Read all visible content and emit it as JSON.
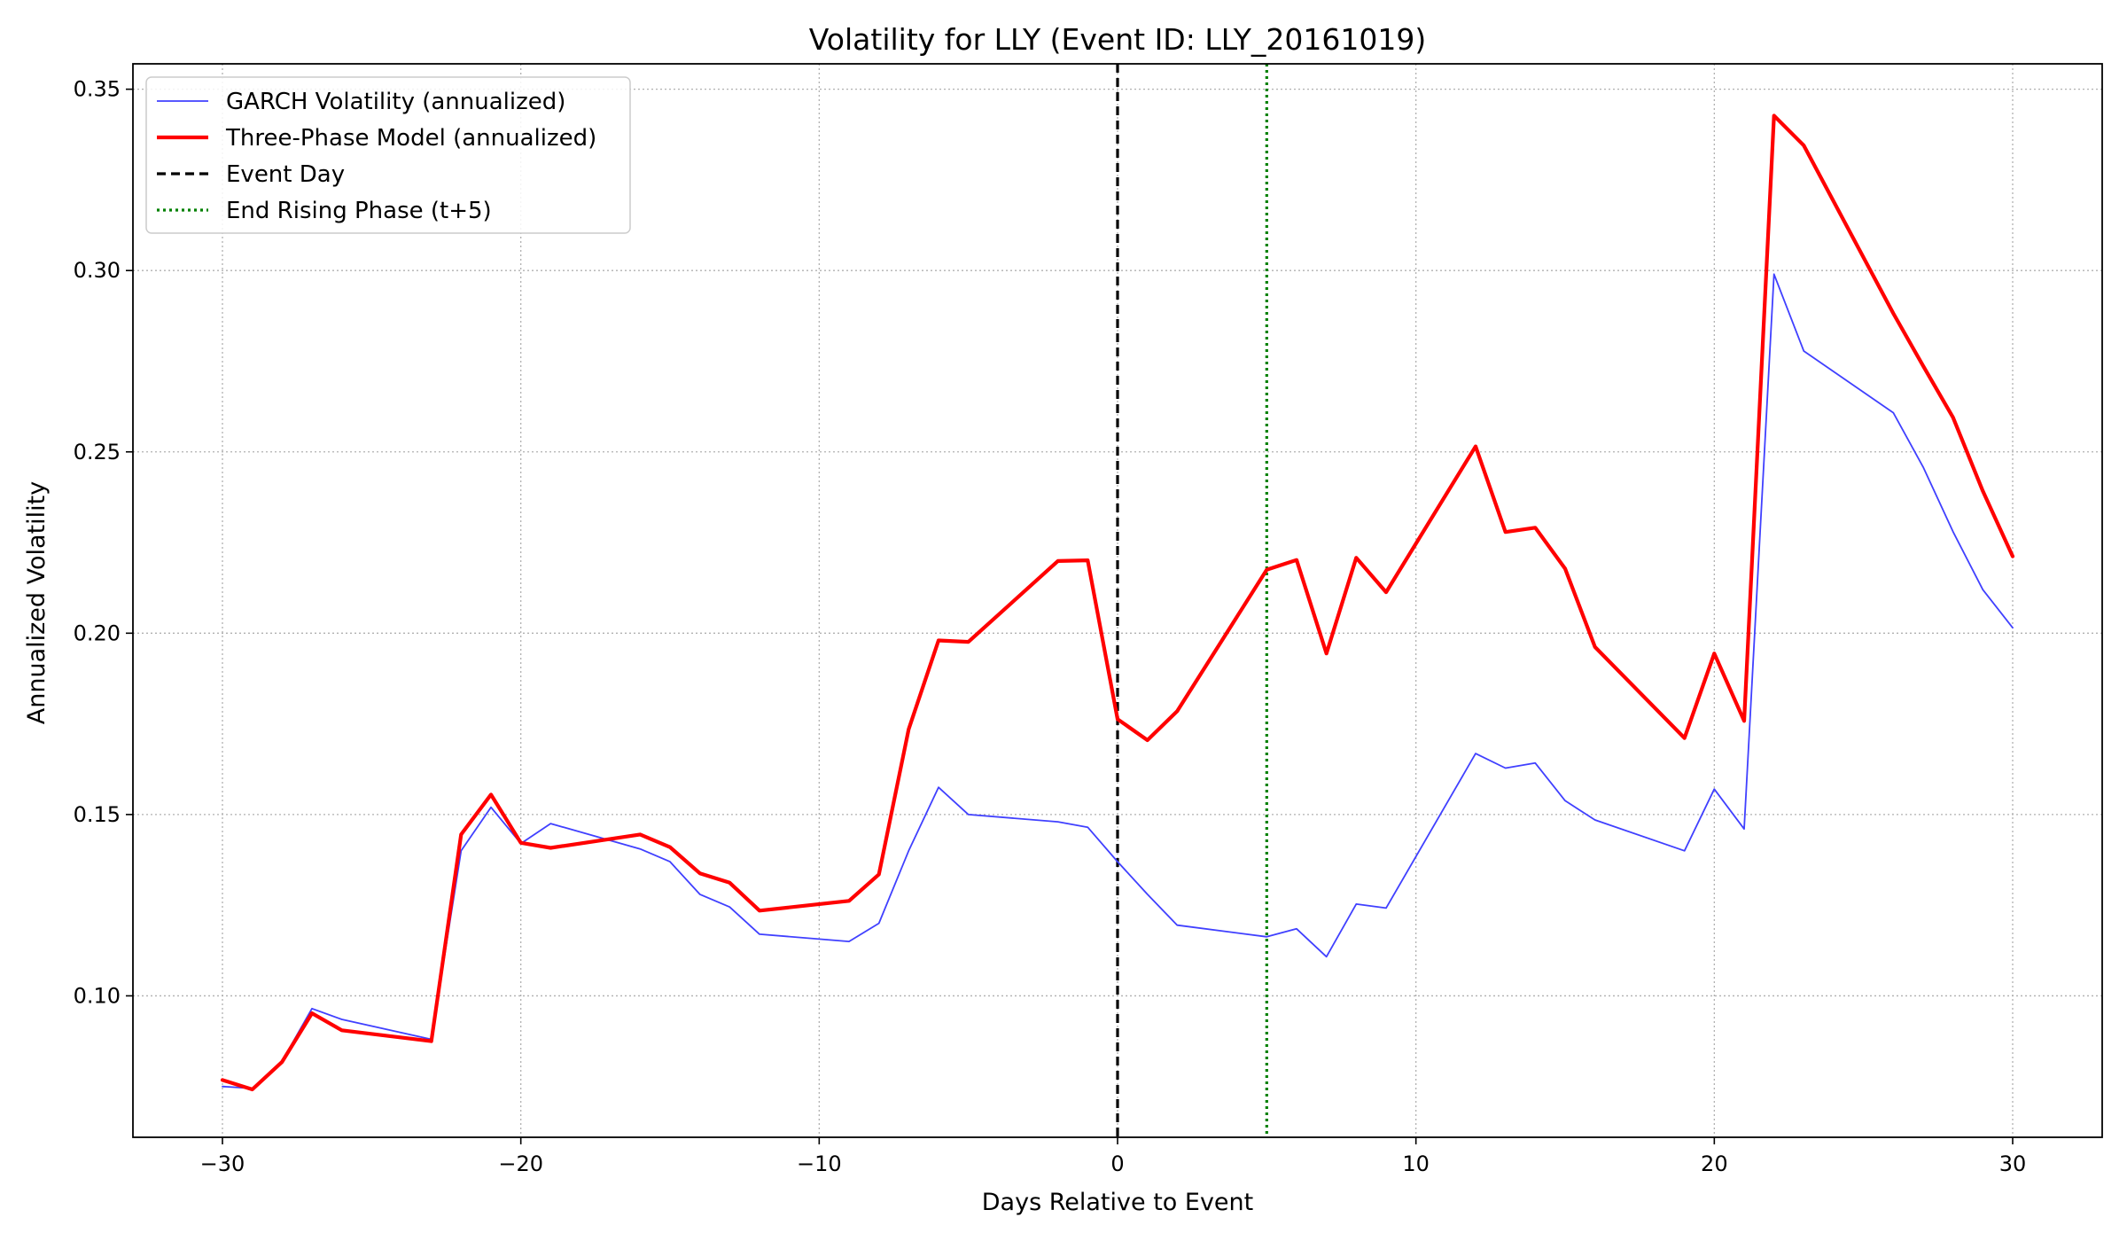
{
  "chart_data": {
    "type": "line",
    "title": "Volatility for LLY (Event ID: LLY_20161019)",
    "xlabel": "Days Relative to Event",
    "ylabel": "Annualized Volatility",
    "xlim": [
      -33,
      33
    ],
    "ylim": [
      0.061,
      0.357
    ],
    "xticks": [
      -30,
      -20,
      -10,
      0,
      10,
      20,
      30
    ],
    "xtick_labels": [
      "−30",
      "−20",
      "−10",
      "0",
      "10",
      "20",
      "30"
    ],
    "yticks": [
      0.1,
      0.15,
      0.2,
      0.25,
      0.3,
      0.35
    ],
    "ytick_labels": [
      "0.10",
      "0.15",
      "0.20",
      "0.25",
      "0.30",
      "0.35"
    ],
    "grid": true,
    "legend_position": "top-left",
    "series": [
      {
        "name": "GARCH Volatility (annualized)",
        "color": "#4040ff",
        "x": [
          -30,
          -29,
          -28,
          -27,
          -26,
          -23,
          -22,
          -21,
          -20,
          -19,
          -16,
          -15,
          -14,
          -13,
          -12,
          -9,
          -8,
          -7,
          -6,
          -5,
          -2,
          -1,
          0,
          1,
          2,
          5,
          6,
          7,
          8,
          9,
          12,
          13,
          14,
          15,
          16,
          19,
          20,
          21,
          22,
          23,
          26,
          27,
          28,
          29,
          30
        ],
        "y": [
          0.075,
          0.0745,
          0.082,
          0.0965,
          0.0935,
          0.088,
          0.14,
          0.152,
          0.142,
          0.1475,
          0.1405,
          0.137,
          0.128,
          0.1245,
          0.117,
          0.115,
          0.12,
          0.14,
          0.1575,
          0.15,
          0.148,
          0.1465,
          0.137,
          0.128,
          0.1195,
          0.1163,
          0.1185,
          0.1108,
          0.1253,
          0.1242,
          0.1668,
          0.1628,
          0.1642,
          0.1538,
          0.1485,
          0.14,
          0.157,
          0.146,
          0.299,
          0.2778,
          0.2608,
          0.2458,
          0.228,
          0.212,
          0.2015
        ]
      },
      {
        "name": "Three-Phase Model (annualized)",
        "color": "#ff0000",
        "x": [
          -30,
          -29,
          -28,
          -27,
          -26,
          -23,
          -22,
          -21,
          -20,
          -19,
          -16,
          -15,
          -14,
          -13,
          -12,
          -9,
          -8,
          -7,
          -6,
          -5,
          -2,
          -1,
          0,
          1,
          2,
          5,
          6,
          7,
          8,
          9,
          12,
          13,
          14,
          15,
          16,
          19,
          20,
          21,
          22,
          23,
          26,
          27,
          28,
          29,
          30
        ],
        "y": [
          0.0768,
          0.0742,
          0.0818,
          0.0952,
          0.0905,
          0.0875,
          0.1445,
          0.1555,
          0.1422,
          0.1408,
          0.1445,
          0.141,
          0.1338,
          0.1312,
          0.1235,
          0.1262,
          0.1335,
          0.1735,
          0.198,
          0.1976,
          0.2199,
          0.2201,
          0.1763,
          0.1705,
          0.1785,
          0.2175,
          0.2202,
          0.1944,
          0.2208,
          0.2113,
          0.2515,
          0.2279,
          0.2291,
          0.2178,
          0.1962,
          0.1711,
          0.1944,
          0.1758,
          0.3427,
          0.3345,
          0.2882,
          0.2737,
          0.2595,
          0.2392,
          0.2212
        ]
      }
    ],
    "vlines": [
      {
        "name": "Event Day",
        "x": 0,
        "color": "#000000"
      },
      {
        "name": "End Rising Phase (t+5)",
        "x": 5,
        "color": "#008000"
      }
    ]
  }
}
